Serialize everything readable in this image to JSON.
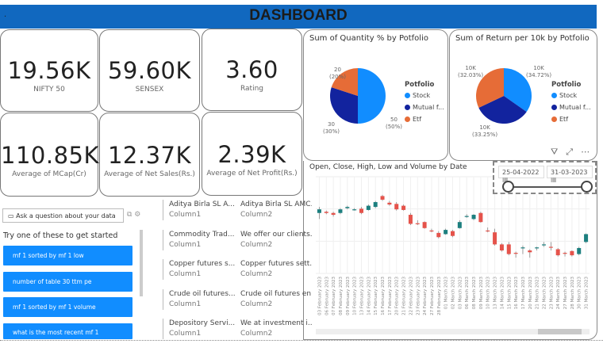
{
  "header": {
    "title": "DASHBOARD"
  },
  "kpis": [
    {
      "value": "19.56K",
      "label": "NIFTY 50"
    },
    {
      "value": "59.60K",
      "label": "SENSEX"
    },
    {
      "value": "3.60",
      "label": "Rating"
    },
    {
      "value": "110.85K",
      "label": "Average of MCap(Cr)"
    },
    {
      "value": "12.37K",
      "label": "Average of Net Sales(Rs.)"
    },
    {
      "value": "2.39K",
      "label": "Average of Net Profit(Rs.)"
    }
  ],
  "chart_data": [
    {
      "type": "pie",
      "title": "Sum of Quantity % by Potfolio",
      "legend_title": "Potfolio",
      "legend_position": "right",
      "slices": [
        {
          "name": "Stock",
          "value": 50,
          "label": "50",
          "pct": "(50%)",
          "color": "#118dff"
        },
        {
          "name": "Mutual f...",
          "value": 30,
          "label": "30",
          "pct": "(30%)",
          "color": "#12239e"
        },
        {
          "name": "Etf",
          "value": 20,
          "label": "20",
          "pct": "(20%)",
          "color": "#e66c37"
        }
      ]
    },
    {
      "type": "pie",
      "title": "Sum of Return per 10k by Potfolio",
      "legend_title": "Potfolio",
      "legend_position": "right",
      "slices": [
        {
          "name": "Stock",
          "value": 34.72,
          "label": "10K",
          "pct": "(34.72%)",
          "color": "#118dff"
        },
        {
          "name": "Mutual f...",
          "value": 33.25,
          "label": "10K",
          "pct": "(33.25%)",
          "color": "#12239e"
        },
        {
          "name": "Etf",
          "value": 32.03,
          "label": "10K",
          "pct": "(32.03%)",
          "color": "#e66c37"
        }
      ]
    },
    {
      "type": "candlestick",
      "title": "Open, Close, High, Low and Volume by Date",
      "grid": true,
      "up_color": "#1c7f7f",
      "down_color": "#e5534b",
      "columns": [
        "date",
        "open",
        "high",
        "low",
        "close"
      ],
      "rows": [
        [
          "03 February 2023",
          50,
          55,
          45,
          53
        ],
        [
          "06 February 2023",
          51,
          52,
          49,
          50
        ],
        [
          "07 February 2023",
          50,
          51,
          47,
          48.5
        ],
        [
          "08 February 2023",
          50,
          54,
          49,
          53
        ],
        [
          "09 February 2023",
          54,
          56,
          53,
          55
        ],
        [
          "10 February 2023",
          52.5,
          54,
          52,
          53
        ],
        [
          "13 February 2023",
          53.5,
          55,
          49,
          50
        ],
        [
          "14 February 2023",
          52.5,
          57,
          52,
          56
        ],
        [
          "15 February 2023",
          55,
          60,
          54,
          59
        ],
        [
          "16 February 2023",
          64,
          65,
          60,
          61
        ],
        [
          "17 February 2023",
          58.5,
          60,
          56,
          57
        ],
        [
          "20 February 2023",
          57.5,
          59,
          52,
          53
        ],
        [
          "21 February 2023",
          56,
          57,
          52,
          52.5
        ],
        [
          "22 February 2023",
          48.5,
          50,
          40,
          41
        ],
        [
          "23 February 2023",
          41.5,
          44,
          40,
          41
        ],
        [
          "24 February 2023",
          42.5,
          43,
          37,
          37.5
        ],
        [
          "27 February 2023",
          35.5,
          37,
          34,
          35
        ],
        [
          "28 February 2023",
          33.5,
          35,
          29,
          30
        ],
        [
          "01 March 2023",
          32.5,
          37,
          32,
          36
        ],
        [
          "02 March 2023",
          35,
          36,
          30,
          31
        ],
        [
          "03 March 2023",
          37.5,
          44,
          37,
          42.5
        ],
        [
          "06 March 2023",
          47,
          49,
          46,
          47.5
        ],
        [
          "08 March 2023",
          45,
          49,
          44,
          48.5
        ],
        [
          "09 March 2023",
          50,
          51,
          42,
          42.5
        ],
        [
          "10 March 2023",
          35.5,
          38,
          34,
          35
        ],
        [
          "13 March 2023",
          34,
          37,
          23,
          24
        ],
        [
          "14 March 2023",
          24,
          25,
          18,
          19
        ],
        [
          "15 March 2023",
          24,
          26,
          15,
          16
        ],
        [
          "16 March 2023",
          17,
          18,
          13,
          16.5
        ],
        [
          "17 March 2023",
          21,
          23,
          16,
          21.5
        ],
        [
          "20 March 2023",
          19,
          20,
          13,
          17.5
        ],
        [
          "21 March 2023",
          21,
          22,
          19,
          21.5
        ],
        [
          "22 March 2023",
          23.5,
          26,
          22,
          24
        ],
        [
          "23 March 2023",
          22,
          26,
          19,
          21.5
        ],
        [
          "24 March 2023",
          20,
          21,
          14,
          15
        ],
        [
          "27 March 2023",
          17,
          18,
          14,
          16.5
        ],
        [
          "28 March 2023",
          18.5,
          19,
          14,
          15
        ],
        [
          "30 March 2023",
          16,
          22,
          15,
          21
        ],
        [
          "31 March 2023",
          26,
          33,
          25,
          32.5
        ]
      ]
    }
  ],
  "date_slicer": {
    "start": "25-04-2022",
    "end": "31-03-2023",
    "start_level": 0,
    "end_level": 1
  },
  "qna": {
    "placeholder": "Ask a question about your data",
    "prompt": "Try one of these to get started",
    "suggestions": [
      "mf 1 sorted by mf 1 low",
      "number of table 30 ttm pe",
      "mf 1 sorted by mf 1 volume",
      "what is the most recent mf 1"
    ]
  },
  "table": {
    "rows": [
      {
        "c1": "Aditya Birla SL A...",
        "c2": "Aditya Birla SL AMC...",
        "s1": "Column1",
        "s2": "Column2"
      },
      {
        "c1": "Commodity Trad...",
        "c2": "We offer our clients...",
        "s1": "Column1",
        "s2": "Column2"
      },
      {
        "c1": "Copper futures s...",
        "c2": "Copper futures sett...",
        "s1": "Column1",
        "s2": "Column2"
      },
      {
        "c1": "Crude oil futures...",
        "c2": "Crude oil futures en...",
        "s1": "Column1",
        "s2": "Column2"
      },
      {
        "c1": "Depository Servi...",
        "c2": "We at investment i...",
        "s1": "Column1",
        "s2": "Column2"
      }
    ]
  },
  "icons": [
    "filter-icon",
    "focus-mode-icon",
    "more-options-icon",
    "calendar-icon",
    "chat-icon",
    "settings-icon"
  ]
}
